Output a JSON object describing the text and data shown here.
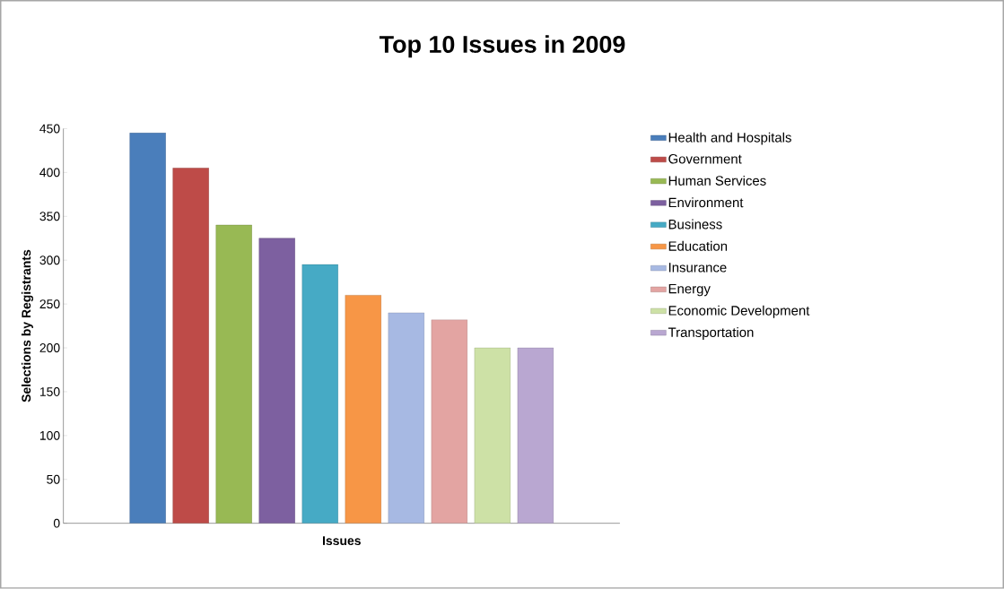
{
  "chart_data": {
    "type": "bar",
    "title": "Top 10 Issues in 2009",
    "xlabel": "Issues",
    "ylabel": "Selections by Registrants",
    "categories": [
      null
    ],
    "series": [
      {
        "name": "Health and Hospitals",
        "color": "#4a7ebb",
        "values": [
          445
        ]
      },
      {
        "name": "Government",
        "color": "#be4b48",
        "values": [
          405
        ]
      },
      {
        "name": "Human Services",
        "color": "#98b954",
        "values": [
          340
        ]
      },
      {
        "name": "Environment",
        "color": "#7d60a0",
        "values": [
          325
        ]
      },
      {
        "name": "Business",
        "color": "#46aac5",
        "values": [
          295
        ]
      },
      {
        "name": "Education",
        "color": "#f79646",
        "values": [
          260
        ]
      },
      {
        "name": "Insurance",
        "color": "#a7b9e3",
        "values": [
          240
        ]
      },
      {
        "name": "Energy",
        "color": "#e3a4a2",
        "values": [
          232
        ]
      },
      {
        "name": "Economic Development",
        "color": "#cde1a6",
        "values": [
          200
        ]
      },
      {
        "name": "Transportation",
        "color": "#b9a7d1",
        "values": [
          200
        ]
      }
    ],
    "ylim": [
      0,
      450
    ],
    "yticks": [
      0,
      50,
      100,
      150,
      200,
      250,
      300,
      350,
      400,
      450
    ],
    "legend": "right"
  }
}
